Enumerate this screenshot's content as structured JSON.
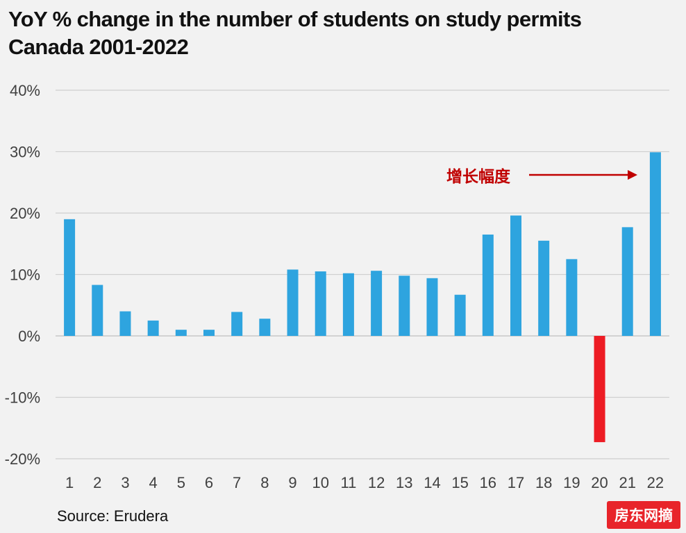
{
  "chart_data": {
    "type": "bar",
    "title": "YoY % change in the number of students on study permits",
    "subtitle": "Canada 2001-2022",
    "categories": [
      "1",
      "2",
      "3",
      "4",
      "5",
      "6",
      "7",
      "8",
      "9",
      "10",
      "11",
      "12",
      "13",
      "14",
      "15",
      "16",
      "17",
      "18",
      "19",
      "20",
      "21",
      "22"
    ],
    "values": [
      19,
      8.3,
      4,
      2.5,
      1,
      1,
      3.9,
      2.8,
      10.8,
      10.5,
      10.2,
      10.6,
      9.8,
      9.4,
      6.7,
      16.5,
      19.6,
      15.5,
      12.5,
      -17.3,
      17.7,
      29.9
    ],
    "yticks": [
      "40%",
      "30%",
      "20%",
      "10%",
      "0%",
      "-10%",
      "-20%"
    ],
    "ylim": [
      -20,
      40
    ],
    "grid": true,
    "colors": {
      "positive": "#2ea4df",
      "negative": "#ed1c24",
      "annotation": "#c00000"
    },
    "annotation": {
      "text": "增长幅度"
    }
  },
  "source": "Source: Erudera",
  "watermark": "房东网摘"
}
